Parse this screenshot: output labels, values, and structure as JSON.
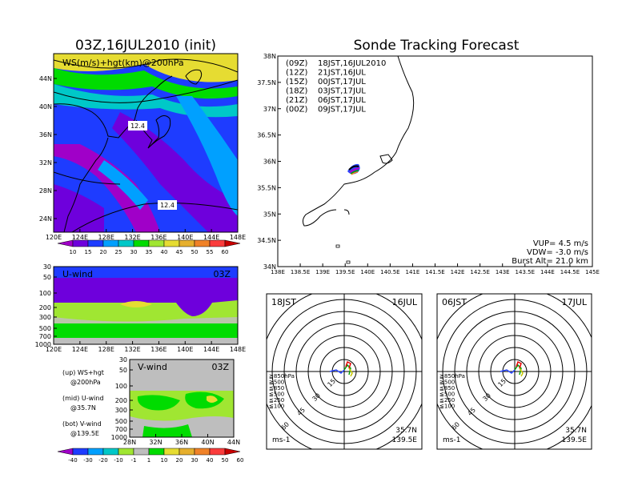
{
  "header": {
    "left_title": "03Z,16JUL2010 (init)",
    "right_title": "Sonde Tracking Forecast"
  },
  "map_panel": {
    "label": "WS(m/s)+hgt(km)@200hPa",
    "contour_labels": [
      "12.4",
      "12.4"
    ],
    "lat_ticks": [
      "44N",
      "40N",
      "36N",
      "32N",
      "28N",
      "24N"
    ],
    "lon_ticks": [
      "120E",
      "124E",
      "128E",
      "132E",
      "136E",
      "140E",
      "144E",
      "148E"
    ],
    "colorbar": {
      "ticks": [
        "10",
        "15",
        "20",
        "25",
        "30",
        "35",
        "40",
        "45",
        "50",
        "55",
        "60"
      ],
      "colors": [
        "#a000c8",
        "#6e00dc",
        "#1e3cff",
        "#00a0ff",
        "#00c8c8",
        "#00dc00",
        "#a0e632",
        "#e6dc32",
        "#e6af2d",
        "#f08228",
        "#fa3c3c",
        "#c80000"
      ]
    }
  },
  "uwind_panel": {
    "label": "U-wind",
    "time": "03Z",
    "p_ticks": [
      "30",
      "50",
      "100",
      "200",
      "300",
      "500",
      "700",
      "1000"
    ],
    "lon_ticks": [
      "120E",
      "124E",
      "128E",
      "132E",
      "136E",
      "140E",
      "144E",
      "148E"
    ]
  },
  "vwind_panel": {
    "label": "V-wind",
    "time": "03Z",
    "p_ticks": [
      "30",
      "50",
      "100",
      "200",
      "300",
      "500",
      "700",
      "1000"
    ],
    "lat_ticks": [
      "28N",
      "32N",
      "36N",
      "40N",
      "44N"
    ],
    "colorbar": {
      "ticks": [
        "-40",
        "-30",
        "-20",
        "-10",
        "-1",
        "1",
        "10",
        "20",
        "30",
        "40",
        "50",
        "60"
      ],
      "colors": [
        "#a000c8",
        "#1e3cff",
        "#00a0ff",
        "#00c8c8",
        "#a0e632",
        "#bebebe",
        "#00dc00",
        "#e6dc32",
        "#e6af2d",
        "#f08228",
        "#fa3c3c",
        "#c80000"
      ]
    }
  },
  "legend_text": {
    "up_1": "(up) WS+hgt",
    "up_2": "@200hPa",
    "mid_1": "(mid) U-wind",
    "mid_2": "@35.7N",
    "bot_1": "(bot) V-wind",
    "bot_2": "@139.5E"
  },
  "track_map": {
    "lat_ticks": [
      "38N",
      "37.5N",
      "37N",
      "36.5N",
      "36N",
      "35.5N",
      "35N",
      "34.5N",
      "34N"
    ],
    "lon_ticks": [
      "138E",
      "138.5E",
      "139E",
      "139.5E",
      "140E",
      "140.5E",
      "141E",
      "141.5E",
      "142E",
      "142.5E",
      "143E",
      "143.5E",
      "144E",
      "144.5E",
      "145E"
    ],
    "launches": [
      {
        "z": "(09Z)",
        "time": "18JST,16JUL2010",
        "color": "#000000"
      },
      {
        "z": "(12Z)",
        "time": "21JST,16JUL",
        "color": "#b400c8"
      },
      {
        "z": "(15Z)",
        "time": "00JST,17JUL",
        "color": "#2846ff"
      },
      {
        "z": "(18Z)",
        "time": "03JST,17JUL",
        "color": "#00a000"
      },
      {
        "z": "(21Z)",
        "time": "06JST,17JUL",
        "color": "#c8c800"
      },
      {
        "z": "(00Z)",
        "time": "09JST,17JUL",
        "color": "#f08228"
      }
    ],
    "vup": "VUP= 4.5 m/s",
    "vdw": "VDW= -3.0 m/s",
    "burst": "Burst Alt= 21.0 km"
  },
  "hodographs": [
    {
      "time_left": "18JST",
      "time_right": "16JUL",
      "loc1": "35.7N",
      "loc2": "139.5E",
      "units": "ms-1"
    },
    {
      "time_left": "06JST",
      "time_right": "17JUL",
      "loc1": "35.7N",
      "loc2": "139.5E",
      "units": "ms-1"
    }
  ],
  "hodo_rings": [
    "15",
    "30",
    "45",
    "60"
  ],
  "hodo_legend": [
    {
      "label": "≧850hPa",
      "color": "#e60000"
    },
    {
      "label": "≧500",
      "color": "#f08228"
    },
    {
      "label": "≦850",
      "color": "#c8c800"
    },
    {
      "label": "≦500",
      "color": "#00a000"
    },
    {
      "label": "≦250",
      "color": "#00b4dc"
    },
    {
      "label": "≦100",
      "color": "#2846ff"
    }
  ]
}
